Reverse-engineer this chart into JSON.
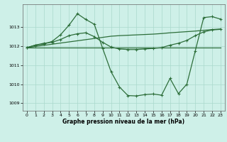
{
  "background_color": "#cef0e8",
  "grid_color": "#aad8cc",
  "line_color": "#2d6e3a",
  "marker_color": "#2d6e3a",
  "xlabel": "Graphe pression niveau de la mer (hPa)",
  "ylim": [
    1008.6,
    1014.2
  ],
  "xlim": [
    -0.5,
    23.5
  ],
  "yticks": [
    1009,
    1010,
    1011,
    1012,
    1013
  ],
  "xticks": [
    0,
    1,
    2,
    3,
    4,
    5,
    6,
    7,
    8,
    9,
    10,
    11,
    12,
    13,
    14,
    15,
    16,
    17,
    18,
    19,
    20,
    21,
    22,
    23
  ],
  "series1_x": [
    0,
    1,
    2,
    3,
    4,
    5,
    6,
    7,
    8,
    9,
    10,
    11,
    12,
    13,
    14,
    15,
    16,
    17,
    18,
    19,
    20,
    21,
    22,
    23
  ],
  "series1_y": [
    1011.92,
    1011.92,
    1011.92,
    1011.92,
    1011.92,
    1011.92,
    1011.92,
    1011.92,
    1011.92,
    1011.92,
    1011.92,
    1011.92,
    1011.92,
    1011.92,
    1011.92,
    1011.92,
    1011.92,
    1011.92,
    1011.92,
    1011.92,
    1011.92,
    1011.92,
    1011.92,
    1011.92
  ],
  "series2_x": [
    0,
    1,
    2,
    3,
    4,
    5,
    6,
    7,
    8,
    9,
    10,
    11,
    12,
    13,
    14,
    15,
    16,
    17,
    18,
    19,
    20,
    21,
    22,
    23
  ],
  "series2_y": [
    1011.92,
    1011.98,
    1012.04,
    1012.1,
    1012.16,
    1012.22,
    1012.28,
    1012.34,
    1012.4,
    1012.46,
    1012.52,
    1012.55,
    1012.57,
    1012.59,
    1012.61,
    1012.63,
    1012.66,
    1012.7,
    1012.73,
    1012.76,
    1012.79,
    1012.83,
    1012.87,
    1012.9
  ],
  "series3_x": [
    0,
    1,
    2,
    3,
    4,
    5,
    6,
    7,
    8,
    9,
    10,
    11,
    12,
    13,
    14,
    15,
    16,
    17,
    18,
    19,
    20,
    21,
    22,
    23
  ],
  "series3_y": [
    1011.92,
    1012.05,
    1012.15,
    1012.2,
    1012.35,
    1012.55,
    1012.65,
    1012.7,
    1012.5,
    1012.2,
    1011.95,
    1011.85,
    1011.82,
    1011.82,
    1011.85,
    1011.88,
    1011.92,
    1012.05,
    1012.15,
    1012.3,
    1012.55,
    1012.75,
    1012.85,
    1012.88
  ],
  "series4_x": [
    0,
    1,
    2,
    3,
    4,
    5,
    6,
    7,
    8,
    9,
    10,
    11,
    12,
    13,
    14,
    15,
    16,
    17,
    18,
    19,
    20,
    21,
    22,
    23
  ],
  "series4_y": [
    1011.92,
    1012.05,
    1012.1,
    1012.25,
    1012.6,
    1013.1,
    1013.7,
    1013.4,
    1013.15,
    1011.88,
    1010.65,
    1009.85,
    1009.4,
    1009.38,
    1009.45,
    1009.48,
    1009.42,
    1010.3,
    1009.5,
    1010.0,
    1011.75,
    1013.5,
    1013.55,
    1013.42
  ]
}
